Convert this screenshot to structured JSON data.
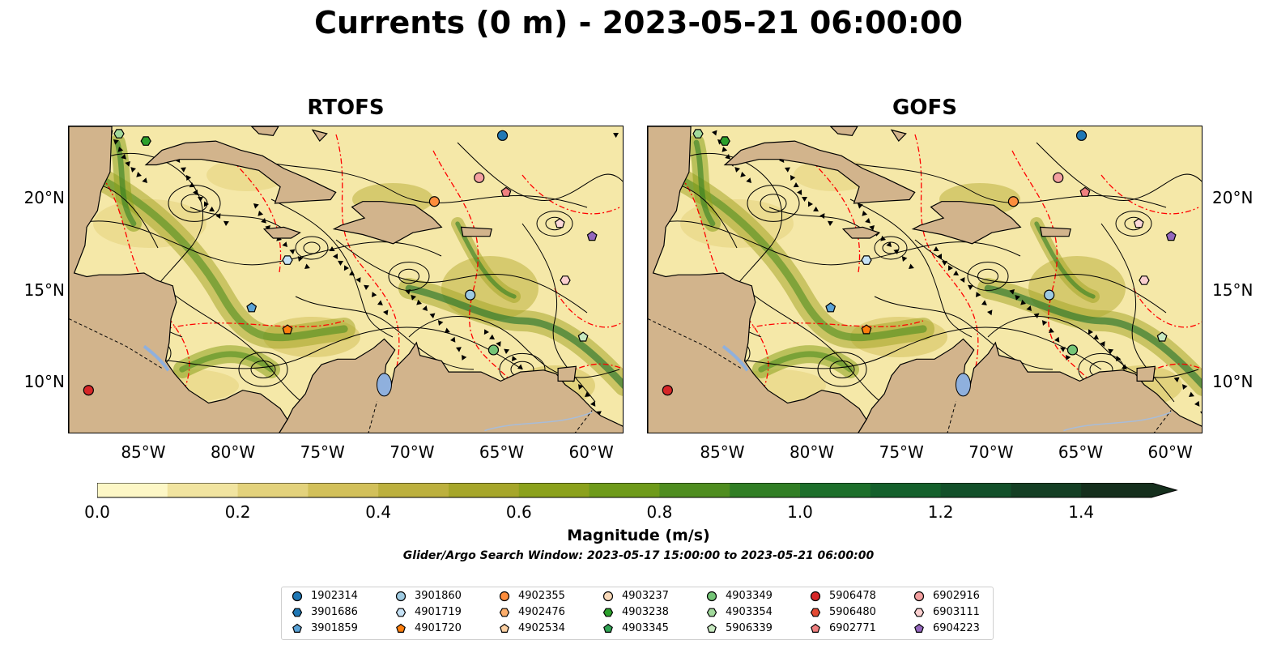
{
  "title": "Currents (0 m) - 2023-05-21 06:00:00",
  "panels": [
    {
      "title": "RTOFS"
    },
    {
      "title": "GOFS"
    }
  ],
  "axes": {
    "x_ticks": [
      "85°W",
      "80°W",
      "75°W",
      "70°W",
      "65°W",
      "60°W"
    ],
    "y_ticks": [
      "20°N",
      "15°N",
      "10°N"
    ],
    "x_values": [
      -85,
      -80,
      -75,
      -70,
      -65,
      -60
    ],
    "y_values": [
      20,
      15,
      10
    ],
    "lon_range": [
      -89.2,
      -58.2
    ],
    "lat_range": [
      7.2,
      24.0
    ]
  },
  "colorbar": {
    "label": "Magnitude (m/s)",
    "ticks": [
      "0.0",
      "0.2",
      "0.4",
      "0.6",
      "0.8",
      "1.0",
      "1.2",
      "1.4"
    ],
    "tick_values": [
      0.0,
      0.2,
      0.4,
      0.6,
      0.8,
      1.0,
      1.2,
      1.4
    ],
    "range": [
      0.0,
      1.5
    ],
    "extend": "max",
    "colors": [
      "#fdf7c6",
      "#f1e4a0",
      "#e3d27c",
      "#d2c05a",
      "#bcb03e",
      "#a6a62a",
      "#8ba11c",
      "#6e9a1a",
      "#4f8d20",
      "#317e25",
      "#1d6f2b",
      "#14602c",
      "#12502a",
      "#143f24",
      "#152f1d"
    ]
  },
  "search_window": "Glider/Argo Search Window: 2023-05-17 15:00:00 to 2023-05-21 06:00:00",
  "colors": {
    "land": "#d2b48c",
    "ocean_low": "#f5e8a8",
    "contour": "#ff0000",
    "streamline": "#000000",
    "lake": "#8fb0dd"
  },
  "floats": [
    {
      "id": "1902314",
      "marker": "circle",
      "color": "#1f77b4",
      "lon": -65.0,
      "lat": 23.5
    },
    {
      "id": "3901686",
      "marker": "hexagon",
      "color": "#1f77b4",
      "lon": null,
      "lat": null
    },
    {
      "id": "3901859",
      "marker": "pentagon",
      "color": "#5aa2d6",
      "lon": -79.0,
      "lat": 14.1
    },
    {
      "id": "3901860",
      "marker": "circle",
      "color": "#9ecae1",
      "lon": -66.8,
      "lat": 14.8
    },
    {
      "id": "4901719",
      "marker": "hexagon",
      "color": "#c6e2f5",
      "lon": -77.0,
      "lat": 16.7
    },
    {
      "id": "4901720",
      "marker": "pentagon",
      "color": "#ff7f0e",
      "lon": -77.0,
      "lat": 12.9
    },
    {
      "id": "4902355",
      "marker": "circle",
      "color": "#fd8d3c",
      "lon": -68.8,
      "lat": 19.9
    },
    {
      "id": "4902476",
      "marker": "hexagon",
      "color": "#fdae6b",
      "lon": null,
      "lat": null
    },
    {
      "id": "4902534",
      "marker": "pentagon",
      "color": "#fdd0a2",
      "lon": null,
      "lat": null
    },
    {
      "id": "4903237",
      "marker": "circle",
      "color": "#f9d9b9",
      "lon": null,
      "lat": null
    },
    {
      "id": "4903238",
      "marker": "hexagon",
      "color": "#2ca02c",
      "lon": -84.9,
      "lat": 23.2
    },
    {
      "id": "4903345",
      "marker": "pentagon",
      "color": "#31a354",
      "lon": null,
      "lat": null
    },
    {
      "id": "4903349",
      "marker": "circle",
      "color": "#74c476",
      "lon": -65.5,
      "lat": 11.8
    },
    {
      "id": "4903354",
      "marker": "hexagon",
      "color": "#a1d99b",
      "lon": -86.4,
      "lat": 23.6
    },
    {
      "id": "5906339",
      "marker": "pentagon",
      "color": "#c7e9c0",
      "lon": -60.5,
      "lat": 12.5
    },
    {
      "id": "5906478",
      "marker": "circle",
      "color": "#d62728",
      "lon": -88.1,
      "lat": 9.6
    },
    {
      "id": "5906480",
      "marker": "hexagon",
      "color": "#e34a33",
      "lon": null,
      "lat": null
    },
    {
      "id": "6902771",
      "marker": "pentagon",
      "color": "#f08080",
      "lon": -64.8,
      "lat": 20.4
    },
    {
      "id": "6902916",
      "marker": "circle",
      "color": "#f4a0a0",
      "lon": -66.3,
      "lat": 21.2
    },
    {
      "id": "6903111",
      "marker": "hexagon",
      "color": "#fbcfcf",
      "lon": -61.5,
      "lat": 15.6
    },
    {
      "id": "6904223",
      "marker": "pentagon",
      "color": "#9467bd",
      "lon": -60.0,
      "lat": 18.0
    }
  ],
  "float_extra": [
    {
      "color": "#fcd9d9",
      "marker": "pentagon",
      "lon": -61.8,
      "lat": 18.7
    }
  ]
}
